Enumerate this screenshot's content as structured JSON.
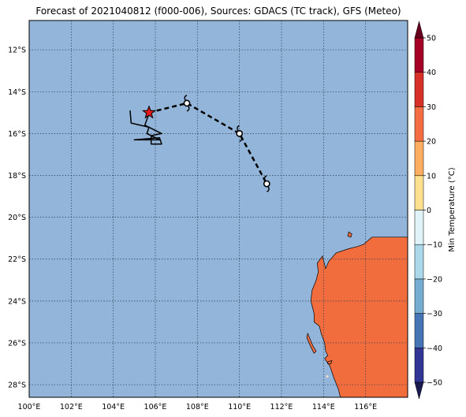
{
  "title": "Forecast of 2021040812 (f000-006), Sources: GDACS (TC track), GFS (Meteo)",
  "map": {
    "lon_range": [
      100,
      118
    ],
    "lat_range": [
      -28.6,
      -10.6
    ],
    "grid": true,
    "lon_ticks": [
      {
        "value": 100,
        "label": "100°E"
      },
      {
        "value": 102,
        "label": "102°E"
      },
      {
        "value": 104,
        "label": "104°E"
      },
      {
        "value": 106,
        "label": "106°E"
      },
      {
        "value": 108,
        "label": "108°E"
      },
      {
        "value": 110,
        "label": "110°E"
      },
      {
        "value": 112,
        "label": "112°E"
      },
      {
        "value": 114,
        "label": "114°E"
      },
      {
        "value": 116,
        "label": "116°E"
      }
    ],
    "lat_ticks": [
      {
        "value": -12,
        "label": "12°S"
      },
      {
        "value": -14,
        "label": "14°S"
      },
      {
        "value": -16,
        "label": "16°S"
      },
      {
        "value": -18,
        "label": "18°S"
      },
      {
        "value": -20,
        "label": "20°S"
      },
      {
        "value": -22,
        "label": "22°S"
      },
      {
        "value": -24,
        "label": "24°S"
      },
      {
        "value": -26,
        "label": "26°S"
      },
      {
        "value": -28,
        "label": "28°S"
      }
    ],
    "colors": {
      "ocean": "#92b5d9",
      "land": "#f26d3d",
      "grid": "#2b3d55",
      "track": "#000000",
      "star": "#e41a1c"
    },
    "current_position": {
      "lon": 105.7,
      "lat": -15.0,
      "icon": "star-icon"
    },
    "past_track": [
      [
        104.8,
        -14.9
      ],
      [
        104.85,
        -15.5
      ],
      [
        105.7,
        -15.7
      ],
      [
        105.6,
        -16.0
      ],
      [
        106.2,
        -16.3
      ],
      [
        105.0,
        -16.3
      ],
      [
        106.2,
        -16.2
      ],
      [
        106.3,
        -16.5
      ],
      [
        105.8,
        -16.5
      ],
      [
        105.8,
        -16.1
      ],
      [
        106.3,
        -16.0
      ],
      [
        105.5,
        -15.6
      ],
      [
        105.7,
        -15.05
      ]
    ],
    "forecast_track": [
      [
        105.7,
        -15.0
      ],
      [
        107.5,
        -14.55
      ],
      [
        110.0,
        -16.0
      ],
      [
        111.3,
        -18.4
      ]
    ],
    "forecast_positions": [
      {
        "lon": 107.5,
        "lat": -14.55,
        "icon": "cyclone-icon"
      },
      {
        "lon": 110.0,
        "lat": -16.0,
        "icon": "cyclone-icon"
      },
      {
        "lon": 111.3,
        "lat": -18.4,
        "icon": "cyclone-icon"
      }
    ],
    "coastline": [
      [
        118.0,
        -20.95
      ],
      [
        117.0,
        -20.95
      ],
      [
        116.3,
        -20.95
      ],
      [
        115.9,
        -21.3
      ],
      [
        115.6,
        -21.4
      ],
      [
        115.2,
        -21.5
      ],
      [
        114.6,
        -21.7
      ],
      [
        114.25,
        -22.1
      ],
      [
        114.1,
        -22.45
      ],
      [
        113.95,
        -21.85
      ],
      [
        113.7,
        -22.2
      ],
      [
        113.75,
        -22.6
      ],
      [
        113.65,
        -23.0
      ],
      [
        113.45,
        -23.5
      ],
      [
        113.4,
        -24.0
      ],
      [
        113.55,
        -24.6
      ],
      [
        113.55,
        -25.0
      ],
      [
        113.8,
        -25.2
      ],
      [
        113.9,
        -25.6
      ],
      [
        114.05,
        -26.0
      ],
      [
        114.1,
        -26.4
      ],
      [
        114.2,
        -26.6
      ],
      [
        114.05,
        -26.75
      ],
      [
        114.3,
        -27.1
      ],
      [
        114.5,
        -27.7
      ],
      [
        114.7,
        -28.2
      ],
      [
        114.8,
        -28.6
      ],
      [
        118.0,
        -28.6
      ]
    ],
    "islands": [
      [
        [
          113.25,
          -25.55
        ],
        [
          113.35,
          -25.8
        ],
        [
          113.5,
          -26.15
        ],
        [
          113.65,
          -26.4
        ],
        [
          113.55,
          -26.5
        ],
        [
          113.4,
          -26.2
        ],
        [
          113.2,
          -25.75
        ]
      ],
      [
        [
          115.2,
          -20.7
        ],
        [
          115.35,
          -20.8
        ],
        [
          115.3,
          -20.95
        ],
        [
          115.15,
          -20.9
        ]
      ],
      [
        [
          114.2,
          -26.9
        ],
        [
          114.4,
          -26.85
        ],
        [
          114.35,
          -27.0
        ],
        [
          114.2,
          -27.0
        ]
      ]
    ],
    "lake": [
      114.18,
      -27.6
    ]
  },
  "colorbar": {
    "label": "Min Temperature (°C)",
    "ticks": [
      "50",
      "40",
      "30",
      "20",
      "10",
      "0",
      "−10",
      "−20",
      "−30",
      "−40",
      "−50"
    ],
    "range": [
      -50,
      50
    ],
    "step": 10,
    "colors": [
      "#313695",
      "#4575b4",
      "#74add1",
      "#abd9e9",
      "#e0f3f8",
      "#fee090",
      "#fdae61",
      "#f46d43",
      "#d73027",
      "#a50026"
    ]
  }
}
